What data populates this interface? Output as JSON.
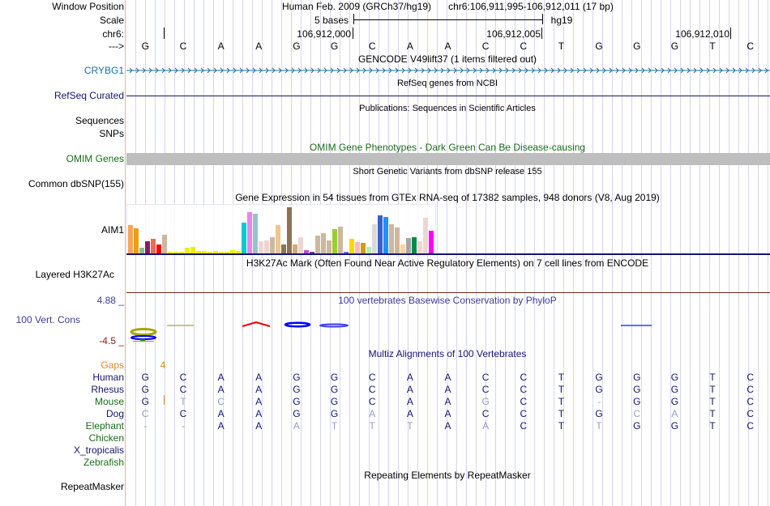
{
  "header": {
    "window_position_label": "Window Position",
    "scale_label": "Scale",
    "chrom_label": "chr6:",
    "strand_label": "--->",
    "assembly_text": "Human Feb. 2009 (GRCh37/hg19)",
    "position_text": "chr6:106,911,995-106,912,011 (17 bp)",
    "scale_text": "5 bases",
    "db_text": "hg19",
    "coord_ticks": [
      "106,912,000",
      "106,912,005",
      "106,912,010"
    ]
  },
  "reference_sequence": [
    "G",
    "C",
    "A",
    "A",
    "G",
    "G",
    "C",
    "A",
    "A",
    "C",
    "C",
    "T",
    "G",
    "G",
    "G",
    "T",
    "C"
  ],
  "tracks": {
    "gencode": {
      "title": "GENCODE V49lift37 (1 items filtered out)",
      "gene_label": "CRYBG1",
      "color": "#1f6fa6"
    },
    "refseq": {
      "title": "RefSeq genes from NCBI",
      "label": "RefSeq Curated",
      "color": "#141470"
    },
    "publications": {
      "title": "Publications: Sequences in Scientific Articles",
      "label_line1": "Sequences",
      "label_line2": "SNPs"
    },
    "omim": {
      "title": "OMIM Gene Phenotypes - Dark Green Can Be Disease-causing",
      "label": "OMIM Genes",
      "color": "#1a6b1a",
      "bar_color": "#bebebe"
    },
    "dbsnp": {
      "title": "Short Genetic Variants from dbSNP release 155",
      "label": "Common dbSNP(155)"
    },
    "gtex": {
      "title": "Gene Expression in 54 tissues from GTEx RNA-seq of 17382 samples, 948 donors (V8, Aug 2019)",
      "label": "AIM1",
      "baseline_color": "#141470",
      "bars": [
        {
          "h": 0.62,
          "c": "#f8a35b"
        },
        {
          "h": 0.55,
          "c": "#ee9f10"
        },
        {
          "h": 0.14,
          "c": "#8fbc8f"
        },
        {
          "h": 0.27,
          "c": "#8b1c62"
        },
        {
          "h": 0.32,
          "c": "#ee6a50"
        },
        {
          "h": 0.2,
          "c": "#ff0000"
        },
        {
          "h": 0.42,
          "c": "#cdb79e"
        },
        {
          "h": 0.05,
          "c": "#eeee00"
        },
        {
          "h": 0.05,
          "c": "#eeee00"
        },
        {
          "h": 0.05,
          "c": "#eeee00"
        },
        {
          "h": 0.14,
          "c": "#eeee00"
        },
        {
          "h": 0.16,
          "c": "#eeee00"
        },
        {
          "h": 0.07,
          "c": "#eeee00"
        },
        {
          "h": 0.07,
          "c": "#eeee00"
        },
        {
          "h": 0.05,
          "c": "#eeee00"
        },
        {
          "h": 0.07,
          "c": "#eeee00"
        },
        {
          "h": 0.05,
          "c": "#eeee00"
        },
        {
          "h": 0.05,
          "c": "#eeee00"
        },
        {
          "h": 0.09,
          "c": "#eeee00"
        },
        {
          "h": 0.07,
          "c": "#eeee00"
        },
        {
          "h": 0.68,
          "c": "#00cdcd"
        },
        {
          "h": 0.9,
          "c": "#ee82ee"
        },
        {
          "h": 0.86,
          "c": "#9ac0cd"
        },
        {
          "h": 0.27,
          "c": "#eed5d2"
        },
        {
          "h": 0.3,
          "c": "#eed5d2"
        },
        {
          "h": 0.37,
          "c": "#cdb79e"
        },
        {
          "h": 0.62,
          "c": "#eec591"
        },
        {
          "h": 0.21,
          "c": "#8b7355"
        },
        {
          "h": 1.0,
          "c": "#8b7355"
        },
        {
          "h": 0.21,
          "c": "#cdaa7d"
        },
        {
          "h": 0.37,
          "c": "#eed5d2"
        },
        {
          "h": 0.08,
          "c": "#b452cd"
        },
        {
          "h": 0.06,
          "c": "#7a378b"
        },
        {
          "h": 0.4,
          "c": "#cdb79e"
        },
        {
          "h": 0.45,
          "c": "#cdb79e"
        },
        {
          "h": 0.3,
          "c": "#cdb79e"
        },
        {
          "h": 0.54,
          "c": "#9acd32"
        },
        {
          "h": 0.58,
          "c": "#cdb79e"
        },
        {
          "h": 0.06,
          "c": "#7b68ee"
        },
        {
          "h": 0.33,
          "c": "#ffd700"
        },
        {
          "h": 0.26,
          "c": "#ffb6c1"
        },
        {
          "h": 0.24,
          "c": "#cd9b1d"
        },
        {
          "h": 0.15,
          "c": "#b4eeb4"
        },
        {
          "h": 0.63,
          "c": "#d9d9d9"
        },
        {
          "h": 0.82,
          "c": "#3a5fcd"
        },
        {
          "h": 0.8,
          "c": "#1e90ff"
        },
        {
          "h": 0.63,
          "c": "#cdb79e"
        },
        {
          "h": 0.57,
          "c": "#cdb79e"
        },
        {
          "h": 0.2,
          "c": "#ffd39b"
        },
        {
          "h": 0.35,
          "c": "#a6a6a6"
        },
        {
          "h": 0.37,
          "c": "#008b45"
        },
        {
          "h": 0.28,
          "c": "#eed5d2"
        },
        {
          "h": 0.78,
          "c": "#eed5d2"
        },
        {
          "h": 0.5,
          "c": "#ff00ff"
        }
      ]
    },
    "h3k27ac": {
      "title": "H3K27Ac Mark (Often Found Near Active Regulatory Elements) on 7 cell lines from ENCODE",
      "label": "Layered H3K27Ac",
      "line_color": "#5a2a1a"
    },
    "phylop": {
      "title": "100 vertebrates Basewise Conservation by PhyloP",
      "label": "100 Vert. Cons",
      "max_label": "4.88 _",
      "min_label": "-4.5 _",
      "color": "#3c3c96",
      "min_color": "#8b1a1a"
    },
    "multiz": {
      "title": "Multiz Alignments of 100 Vertebrates",
      "gaps_label": "Gaps",
      "gaps_value": "4",
      "gaps_color": "#e08a1e",
      "species": [
        {
          "name": "Human",
          "color": "#141470",
          "seq": [
            "G",
            "C",
            "A",
            "A",
            "G",
            "G",
            "C",
            "A",
            "A",
            "C",
            "C",
            "T",
            "G",
            "G",
            "G",
            "T",
            "C"
          ],
          "faint": []
        },
        {
          "name": "Rhesus",
          "color": "#141470",
          "seq": [
            "G",
            "C",
            "A",
            "A",
            "G",
            "G",
            "C",
            "A",
            "A",
            "C",
            "C",
            "T",
            "G",
            "G",
            "G",
            "T",
            "C"
          ],
          "faint": []
        },
        {
          "name": "Mouse",
          "color": "#1a6b1a",
          "seq": [
            "G",
            "T",
            "C",
            "A",
            "G",
            "G",
            "C",
            "A",
            "A",
            "G",
            "C",
            "T",
            "-",
            "G",
            "G",
            "T",
            "C"
          ],
          "faint": [
            1,
            2,
            9,
            12
          ]
        },
        {
          "name": "Dog",
          "color": "#141470",
          "seq": [
            "C",
            "C",
            "A",
            "A",
            "G",
            "G",
            "A",
            "A",
            "A",
            "C",
            "C",
            "T",
            "G",
            "C",
            "A",
            "T",
            "C"
          ],
          "faint": [
            0,
            6,
            13,
            14
          ]
        },
        {
          "name": "Elephant",
          "color": "#1a6b1a",
          "seq": [
            "-",
            "-",
            "A",
            "A",
            "A",
            "T",
            "T",
            "T",
            "A",
            "A",
            "C",
            "T",
            "T",
            "G",
            "G",
            "T",
            "C"
          ],
          "faint": [
            0,
            1,
            4,
            5,
            6,
            7,
            9,
            12
          ]
        },
        {
          "name": "Chicken",
          "color": "#1a6b1a",
          "seq": [],
          "faint": []
        },
        {
          "name": "X_tropicalis",
          "color": "#141470",
          "seq": [],
          "faint": []
        },
        {
          "name": "Zebrafish",
          "color": "#1a6b1a",
          "seq": [],
          "faint": []
        }
      ]
    },
    "repeatmasker": {
      "title": "Repeating Elements by RepeatMasker",
      "label": "RepeatMasker"
    }
  }
}
